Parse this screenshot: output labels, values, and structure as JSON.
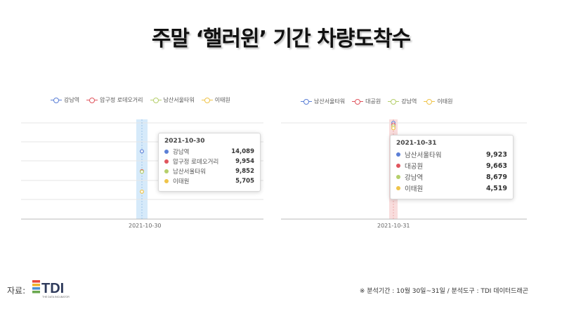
{
  "title": "주말 ‘핼러윈’ 기간 차량도착수",
  "source_label": "자료:",
  "logo": {
    "text": "TDI",
    "subtext": "THE DATA INCUBATOR",
    "colors": [
      "#e8473b",
      "#f1b32b",
      "#4b8fd4",
      "#6aa84f"
    ]
  },
  "footnote": "※ 분석기간 : 10월 30일~31일 / 분석도구 : TDI 데이터드래곤",
  "chart_data": [
    {
      "type": "line",
      "categories": [
        "2021-10-30"
      ],
      "series": [
        {
          "name": "강남역",
          "color": "#5b7fd6",
          "values": [
            14089
          ]
        },
        {
          "name": "압구정 로데오거리",
          "color": "#e0555e",
          "values": [
            9954
          ]
        },
        {
          "name": "남산서울타워",
          "color": "#b5cf6b",
          "values": [
            9852
          ]
        },
        {
          "name": "이태원",
          "color": "#efc44a",
          "values": [
            5705
          ]
        }
      ],
      "highlight_color": "#cfe6f9",
      "tooltip": {
        "date": "2021-10-30",
        "rows": [
          {
            "label": "강남역",
            "value": "14,089",
            "color": "#5b7fd6"
          },
          {
            "label": "압구정 로데오거리",
            "value": "9,954",
            "color": "#e0555e"
          },
          {
            "label": "남산서울타워",
            "value": "9,852",
            "color": "#b5cf6b"
          },
          {
            "label": "이태원",
            "value": "5,705",
            "color": "#efc44a"
          }
        ]
      },
      "ylim": [
        0,
        20000
      ],
      "grid": true,
      "legend": "top-left"
    },
    {
      "type": "line",
      "categories": [
        "2021-10-31"
      ],
      "series": [
        {
          "name": "남산서울타워",
          "color": "#5b7fd6",
          "values": [
            9923
          ]
        },
        {
          "name": "대공원",
          "color": "#e0555e",
          "values": [
            9663
          ]
        },
        {
          "name": "강남역",
          "color": "#b5cf6b",
          "values": [
            8679
          ]
        },
        {
          "name": "이태원",
          "color": "#efc44a",
          "values": [
            4519
          ]
        }
      ],
      "highlight_color": "#f8d7d7",
      "tooltip": {
        "date": "2021-10-31",
        "rows": [
          {
            "label": "남산서울타워",
            "value": "9,923",
            "color": "#5b7fd6"
          },
          {
            "label": "대공원",
            "value": "9,663",
            "color": "#e0555e"
          },
          {
            "label": "강남역",
            "value": "8,679",
            "color": "#b5cf6b"
          },
          {
            "label": "이태원",
            "value": "4,519",
            "color": "#efc44a"
          }
        ]
      },
      "ylim": [
        0,
        10000
      ],
      "grid": true,
      "legend": "top-left"
    }
  ]
}
